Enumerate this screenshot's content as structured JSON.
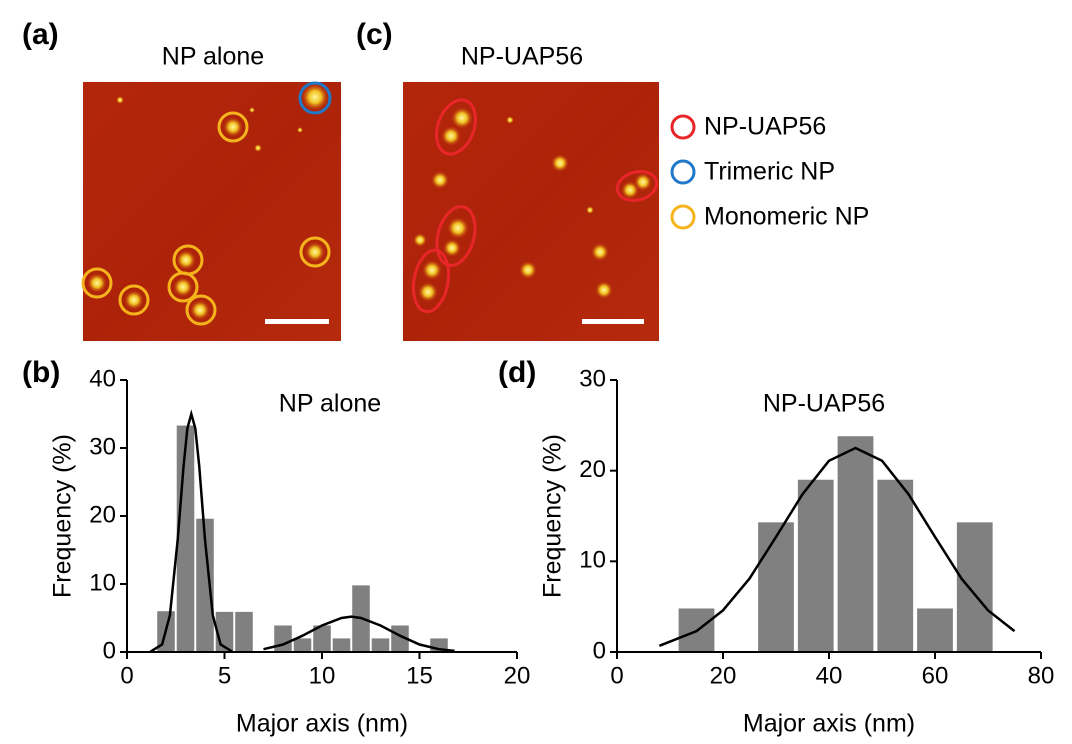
{
  "panels": {
    "a": "(a)",
    "b": "(b)",
    "c": "(c)",
    "d": "(d)"
  },
  "images": [
    {
      "title": "NP alone"
    },
    {
      "title": "NP-UAP56"
    }
  ],
  "legend": [
    {
      "name": "NP-UAP56",
      "color": "#e8262a"
    },
    {
      "name": "Trimeric NP",
      "color": "#1f78c8"
    },
    {
      "name": "Monomeric NP",
      "color": "#f5b31c"
    }
  ],
  "chart_data": [
    {
      "type": "histogram",
      "title": "NP alone",
      "xlabel": "Major axis (nm)",
      "ylabel": "Frequency (%)",
      "bins": [
        1.5,
        2.5,
        3.5,
        4.5,
        5.5,
        6.5,
        7.5,
        8.5,
        9.5,
        10.5,
        11.5,
        12.5,
        13.5,
        14.5,
        15.5,
        16.5
      ],
      "values": [
        6,
        33.3,
        19.6,
        5.9,
        5.9,
        0,
        3.9,
        2,
        3.9,
        2,
        9.8,
        2,
        3.9,
        0,
        2
      ],
      "color": "#808080",
      "fit_color": "#000000",
      "fits": [
        {
          "x": [
            1.2,
            1.8,
            2.2,
            2.6,
            2.9,
            3.1,
            3.3,
            3.5,
            3.7,
            4.0,
            4.4,
            4.8,
            5.4
          ],
          "values": [
            0.04,
            1.1,
            5.4,
            16.5,
            27.4,
            32.9,
            35,
            32.9,
            27.4,
            16.5,
            5.4,
            1.1,
            0.04
          ]
        },
        {
          "x": [
            7,
            8,
            9,
            10,
            11,
            11.5,
            12,
            13,
            14,
            15,
            16,
            16.8
          ],
          "values": [
            0.41,
            1.1,
            2.4,
            3.9,
            5.0,
            5.2,
            5.0,
            3.9,
            2.4,
            1.1,
            0.41,
            0.16
          ]
        }
      ],
      "xlim": [
        0,
        20
      ],
      "xticks": [
        0,
        5,
        10,
        15,
        20
      ],
      "ylim": [
        0,
        40
      ],
      "yticks": [
        0,
        10,
        20,
        30,
        40
      ]
    },
    {
      "type": "histogram",
      "title": "NP-UAP56",
      "xlabel": "Major axis (nm)",
      "ylabel": "Frequency (%)",
      "bins": [
        11.25,
        18.75,
        26.25,
        33.75,
        41.25,
        48.75,
        56.25,
        63.75,
        71.25
      ],
      "values": [
        4.8,
        0,
        14.3,
        19,
        23.8,
        19,
        4.8,
        14.3
      ],
      "color": "#808080",
      "fit_color": "#000000",
      "fits": [
        {
          "x": [
            8,
            15,
            20,
            25,
            30,
            35,
            40,
            45,
            50,
            55,
            60,
            65,
            70,
            75
          ],
          "values": [
            0.68,
            2.3,
            4.6,
            8.1,
            12.7,
            17.4,
            21.1,
            22.5,
            21.1,
            17.4,
            12.7,
            8.1,
            4.6,
            2.3
          ]
        }
      ],
      "xlim": [
        0,
        80
      ],
      "xticks": [
        0,
        20,
        40,
        60,
        80
      ],
      "ylim": [
        0,
        30
      ],
      "yticks": [
        0,
        10,
        20,
        30
      ]
    }
  ]
}
